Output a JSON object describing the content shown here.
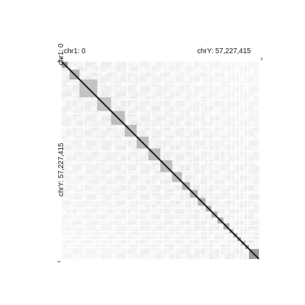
{
  "view": {
    "x_start_label": "chr1: 0",
    "x_end_label": "chrY: 57,227,415",
    "y_start_label": "chr1: 0",
    "y_end_label": "chrY: 57,227,415"
  },
  "heatmap": {
    "diagonal_blocks": [
      {
        "start": 0.0,
        "end": 0.03,
        "intensity": 0.75
      },
      {
        "start": 0.04,
        "end": 0.09,
        "intensity": 0.55
      },
      {
        "start": 0.09,
        "end": 0.18,
        "intensity": 0.45
      },
      {
        "start": 0.18,
        "end": 0.25,
        "intensity": 0.45
      },
      {
        "start": 0.25,
        "end": 0.32,
        "intensity": 0.5
      },
      {
        "start": 0.32,
        "end": 0.38,
        "intensity": 0.5
      },
      {
        "start": 0.38,
        "end": 0.44,
        "intensity": 0.5
      },
      {
        "start": 0.44,
        "end": 0.5,
        "intensity": 0.5
      },
      {
        "start": 0.5,
        "end": 0.56,
        "intensity": 0.5
      },
      {
        "start": 0.56,
        "end": 0.61,
        "intensity": 0.5
      },
      {
        "start": 0.61,
        "end": 0.65,
        "intensity": 0.55
      },
      {
        "start": 0.65,
        "end": 0.69,
        "intensity": 0.55
      },
      {
        "start": 0.69,
        "end": 0.73,
        "intensity": 0.55
      },
      {
        "start": 0.73,
        "end": 0.76,
        "intensity": 0.55
      },
      {
        "start": 0.76,
        "end": 0.79,
        "intensity": 0.55
      },
      {
        "start": 0.79,
        "end": 0.82,
        "intensity": 0.6
      },
      {
        "start": 0.82,
        "end": 0.85,
        "intensity": 0.6
      },
      {
        "start": 0.85,
        "end": 0.87,
        "intensity": 0.6
      },
      {
        "start": 0.87,
        "end": 0.89,
        "intensity": 0.6
      },
      {
        "start": 0.89,
        "end": 0.91,
        "intensity": 0.6
      },
      {
        "start": 0.91,
        "end": 0.93,
        "intensity": 0.6
      },
      {
        "start": 0.93,
        "end": 0.95,
        "intensity": 0.65
      },
      {
        "start": 0.95,
        "end": 1.0,
        "intensity": 0.75
      }
    ],
    "background_intensity": 0.06,
    "colors": {
      "low": "#ffffff",
      "high": "#222222"
    }
  }
}
